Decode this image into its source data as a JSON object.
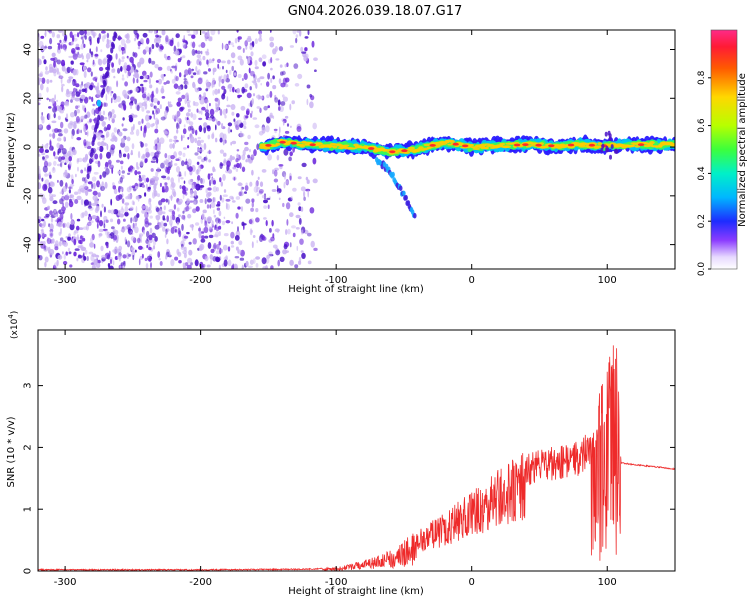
{
  "figure": {
    "title": "GN04.2026.039.18.07.G17"
  },
  "colors": {
    "snr_line": "#ee2a2a",
    "sparse_dot": "#c9b2f2",
    "dense_dot": "#6c27dc",
    "deep_dot": "#4a12c7"
  },
  "chart_data": [
    {
      "type": "heatmap",
      "title": "GN04.2026.039.18.07.G17",
      "xlabel": "Height of straight line (km)",
      "ylabel": "Frequency (Hz)",
      "xlim": [
        -320,
        150
      ],
      "ylim": [
        -50,
        48
      ],
      "x_ticks": [
        -300,
        -200,
        -100,
        0,
        100
      ],
      "x_tick_labels": [
        "-300",
        "-200",
        "-100",
        "0",
        "100"
      ],
      "y_ticks": [
        -40,
        -20,
        0,
        20,
        40
      ],
      "y_tick_labels": [
        "-40",
        "-20",
        "0",
        "20",
        "40"
      ],
      "colorbar": {
        "label": "Normalized spectral amplitude",
        "range": [
          0,
          1
        ],
        "ticks": [
          0.0,
          0.2,
          0.4,
          0.6,
          0.8
        ],
        "tick_labels": [
          "0.0",
          "0.2",
          "0.4",
          "0.6",
          "0.8"
        ]
      },
      "description_ridge": {
        "main_track_x": [
          -155,
          -140,
          -120,
          -100,
          -80,
          -60,
          -40,
          -20,
          0,
          20,
          40,
          60,
          80,
          100,
          120,
          150
        ],
        "main_track_y": [
          0,
          2,
          1,
          0.5,
          0,
          -2,
          -1,
          2,
          0,
          0.5,
          1,
          0.5,
          1,
          0.5,
          1,
          1
        ],
        "tail_x": [
          -70,
          -60,
          -50,
          -42
        ],
        "tail_y": [
          -5,
          -10,
          -20,
          -28
        ],
        "streak_x": [
          -283,
          -278,
          -270,
          -262
        ],
        "streak_y": [
          -12,
          5,
          28,
          48
        ]
      }
    },
    {
      "type": "line",
      "title": "",
      "xlabel": "Height of straight line (km)",
      "ylabel": "SNR (10 * v/v)",
      "scale_label": "(x10",
      "scale_exponent": "4",
      "scale_suffix": ")",
      "xlim": [
        -320,
        150
      ],
      "ylim": [
        0,
        3.9
      ],
      "x_ticks": [
        -300,
        -200,
        -100,
        0,
        100
      ],
      "x_tick_labels": [
        "-300",
        "-200",
        "-100",
        "0",
        "100"
      ],
      "y_ticks": [
        0,
        1,
        2,
        3
      ],
      "y_tick_labels": [
        "0",
        "1",
        "2",
        "3"
      ],
      "envelope_x": [
        -320,
        -200,
        -120,
        -100,
        -80,
        -60,
        -40,
        -20,
        0,
        20,
        40,
        50,
        60,
        70,
        80,
        90,
        95,
        100,
        105,
        108,
        110,
        120,
        130,
        150
      ],
      "envelope_y": [
        0.02,
        0.02,
        0.03,
        0.05,
        0.15,
        0.3,
        0.6,
        0.9,
        1.2,
        1.55,
        1.82,
        1.9,
        1.95,
        1.98,
        2.05,
        2.35,
        2.9,
        3.2,
        3.8,
        3.4,
        1.75,
        1.72,
        1.7,
        1.65
      ]
    }
  ]
}
